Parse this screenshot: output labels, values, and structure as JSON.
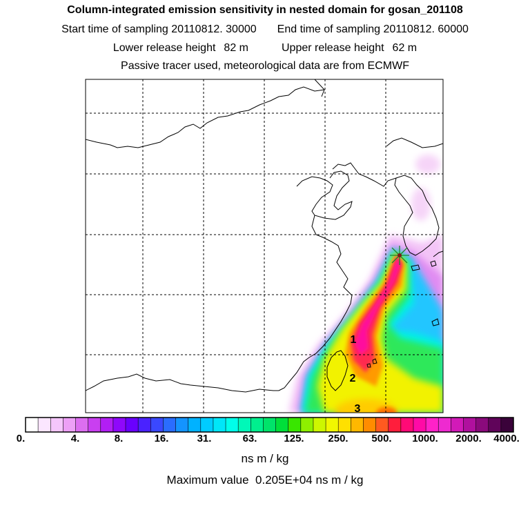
{
  "header": {
    "title": "Column-integrated emission sensitivity in nested domain for gosan_201108",
    "start_label": "Start time of sampling",
    "start_value": "20110812. 30000",
    "end_label": "End time of sampling",
    "end_value": "20110812. 60000",
    "lower_label": "Lower release height",
    "lower_value": "82 m",
    "upper_label": "Upper release height",
    "upper_value": "62 m",
    "subtitle": "Passive tracer used, meteorological data are from ECMWF"
  },
  "map": {
    "markers": [
      {
        "label": "1"
      },
      {
        "label": "2"
      },
      {
        "label": "3"
      }
    ],
    "release_site_icon": "release-site-star-icon"
  },
  "legend": {
    "tick_labels": [
      "0.",
      "4.",
      "8.",
      "16.",
      "31.",
      "63.",
      "125.",
      "250.",
      "500.",
      "1000.",
      "2000.",
      "4000."
    ],
    "colors": [
      "#ffffff",
      "#fbe6ff",
      "#f5c6fb",
      "#eda0f6",
      "#dc6ef0",
      "#c93ff0",
      "#b21ef4",
      "#8f08fb",
      "#6a00ff",
      "#4a22ff",
      "#3a48ff",
      "#2a6dff",
      "#1494ff",
      "#00b2ff",
      "#00ccff",
      "#00e6f8",
      "#00ffea",
      "#00f8b8",
      "#00ef8e",
      "#00e36a",
      "#00df3a",
      "#39e600",
      "#8ef000",
      "#cdf700",
      "#f1f700",
      "#ffe000",
      "#ffb800",
      "#ff8c00",
      "#ff5a20",
      "#ff1e3c",
      "#ff0a76",
      "#ff0aa6",
      "#ff22c8",
      "#ee2ad0",
      "#d21ab8",
      "#b0109e",
      "#8a0a7c",
      "#60045a",
      "#3a023a"
    ],
    "unit": "ns m / kg",
    "max_label": "Maximum value",
    "max_value": "0.205E+04",
    "max_unit": "ns m / kg"
  }
}
